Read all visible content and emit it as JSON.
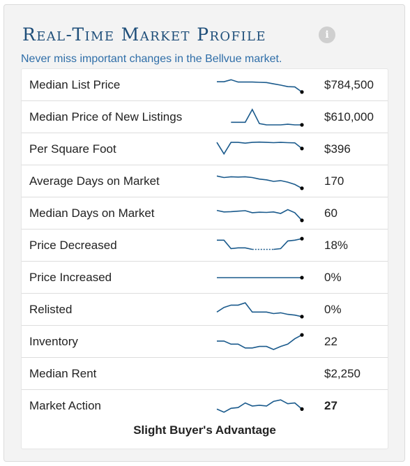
{
  "header": {
    "title": "Real-Time Market Profile",
    "subtitle": "Never miss important changes in the Bellvue market."
  },
  "icons": {
    "info": "info-icon"
  },
  "colors": {
    "title": "#1e4e79",
    "subtitle": "#2f6ea8",
    "sparkline": "#1a5a8c"
  },
  "rows": [
    {
      "label": "Median List Price",
      "value": "$784,500",
      "spark": [
        0.72,
        0.72,
        0.85,
        0.7,
        0.7,
        0.7,
        0.68,
        0.67,
        0.58,
        0.5,
        0.4,
        0.38,
        0.05
      ]
    },
    {
      "label": "Median Price of New Listings",
      "value": "$610,000",
      "spark": [
        null,
        null,
        0.17,
        0.17,
        0.17,
        1.0,
        0.08,
        0.0,
        0.0,
        0.0,
        0.04,
        0.0,
        0.0
      ]
    },
    {
      "label": "Per Square Foot",
      "value": "$396",
      "spark": [
        0.95,
        0.2,
        0.95,
        0.95,
        0.9,
        0.95,
        0.97,
        0.95,
        0.93,
        0.95,
        0.93,
        0.92,
        0.55
      ]
    },
    {
      "label": "Average Days on Market",
      "value": "170",
      "spark": [
        0.85,
        0.75,
        0.8,
        0.78,
        0.8,
        0.75,
        0.65,
        0.6,
        0.5,
        0.55,
        0.45,
        0.3,
        0.05
      ]
    },
    {
      "label": "Median Days on Market",
      "value": "60",
      "spark": [
        0.7,
        0.6,
        0.62,
        0.65,
        0.68,
        0.55,
        0.58,
        0.57,
        0.6,
        0.5,
        0.75,
        0.55,
        0.05
      ]
    },
    {
      "label": "Price Decreased",
      "value": "18%",
      "spark": [
        0.85,
        0.85,
        0.3,
        0.35,
        0.35,
        0.25,
        0.25,
        0.25,
        0.25,
        0.3,
        0.8,
        0.85,
        0.95
      ],
      "gap": [
        5,
        8
      ]
    },
    {
      "label": "Price Increased",
      "value": "0%",
      "spark": [
        0.5,
        0.5,
        0.5,
        0.5,
        0.5,
        0.5,
        0.5,
        0.5,
        0.5,
        0.5,
        0.5,
        0.5,
        0.5
      ]
    },
    {
      "label": "Relisted",
      "value": "0%",
      "spark": [
        0.35,
        0.65,
        0.8,
        0.8,
        0.95,
        0.35,
        0.35,
        0.35,
        0.25,
        0.3,
        0.2,
        0.15,
        0.05
      ]
    },
    {
      "label": "Inventory",
      "value": "22",
      "spark": [
        0.55,
        0.55,
        0.35,
        0.35,
        0.1,
        0.1,
        0.2,
        0.2,
        0.0,
        0.2,
        0.35,
        0.7,
        0.95
      ]
    },
    {
      "label": "Median Rent",
      "value": "$2,250",
      "spark": null
    },
    {
      "label": "Market Action",
      "value": "27",
      "spark": [
        0.3,
        0.1,
        0.35,
        0.4,
        0.7,
        0.5,
        0.55,
        0.5,
        0.8,
        0.9,
        0.65,
        0.7,
        0.3
      ],
      "bold": true
    }
  ],
  "footer": {
    "text": "Slight Buyer's Advantage"
  }
}
